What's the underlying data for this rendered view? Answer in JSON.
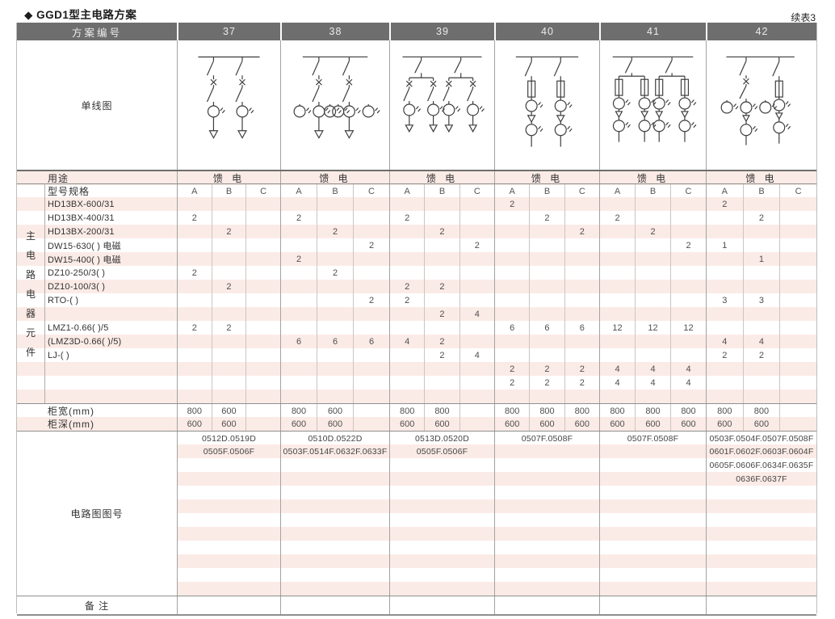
{
  "title": "◆ GGD1型主电路方案",
  "continued_label": "续表3",
  "colors": {
    "header_bg": "#6e6e6e",
    "stripe_pink": "#fbebe6"
  },
  "header": {
    "scheme_label": "方案编号",
    "schemes": [
      "37",
      "38",
      "39",
      "40",
      "41",
      "42"
    ]
  },
  "diagram": {
    "label": "单线图",
    "types": [
      "feeder2-ct",
      "feeder2-ct3",
      "feeder4-ct",
      "feeder2-fuse",
      "feeder4-fuse",
      "feeder2-mixed"
    ]
  },
  "usage": {
    "label": "用途",
    "values": [
      "馈 电",
      "馈 电",
      "馈 电",
      "馈 电",
      "馈 电",
      "馈 电"
    ]
  },
  "spec": {
    "label": "型号规格",
    "subcolumns": [
      "A",
      "B",
      "C"
    ],
    "left_vertical_label": "主电路电器元件"
  },
  "component_rows": [
    {
      "label": "HD13BX-600/31",
      "values": [
        "",
        "",
        "",
        "",
        "",
        "",
        "",
        "",
        "",
        "2",
        "",
        "",
        "",
        "",
        "",
        "2",
        "",
        ""
      ]
    },
    {
      "label": "HD13BX-400/31",
      "values": [
        "2",
        "",
        "",
        "2",
        "",
        "",
        "2",
        "",
        "",
        "",
        "2",
        "",
        "2",
        "",
        "",
        "",
        "2",
        ""
      ]
    },
    {
      "label": "HD13BX-200/31",
      "values": [
        "",
        "2",
        "",
        "",
        "2",
        "",
        "",
        "2",
        "",
        "",
        "",
        "2",
        "",
        "2",
        "",
        "",
        "",
        ""
      ]
    },
    {
      "label": "DW15-630( )  电磁",
      "values": [
        "",
        "",
        "",
        "",
        "",
        "2",
        "",
        "",
        "2",
        "",
        "",
        "",
        "",
        "",
        "2",
        "1",
        "",
        ""
      ]
    },
    {
      "label": "DW15-400( )  电磁",
      "values": [
        "",
        "",
        "",
        "2",
        "",
        "",
        "",
        "",
        "",
        "",
        "",
        "",
        "",
        "",
        "",
        "",
        "1",
        ""
      ]
    },
    {
      "label": "DZ10-250/3( )",
      "values": [
        "2",
        "",
        "",
        "",
        "2",
        "",
        "",
        "",
        "",
        "",
        "",
        "",
        "",
        "",
        "",
        "",
        "",
        ""
      ]
    },
    {
      "label": "DZ10-100/3( )",
      "values": [
        "",
        "2",
        "",
        "",
        "",
        "",
        "2",
        "2",
        "",
        "",
        "",
        "",
        "",
        "",
        "",
        "",
        "",
        ""
      ]
    },
    {
      "label": "RTO-( )",
      "values": [
        "",
        "",
        "",
        "",
        "",
        "2",
        "2",
        "",
        "",
        "",
        "",
        "",
        "",
        "",
        "",
        "3",
        "3",
        ""
      ]
    },
    {
      "label": "",
      "values": [
        "",
        "",
        "",
        "",
        "",
        "",
        "",
        "2",
        "4",
        "",
        "",
        "",
        "",
        "",
        "",
        "",
        "",
        ""
      ]
    },
    {
      "label": "LMZ1-0.66( )/5",
      "values": [
        "2",
        "2",
        "",
        "",
        "",
        "",
        "",
        "",
        "",
        "6",
        "6",
        "6",
        "12",
        "12",
        "12",
        "",
        "",
        ""
      ]
    },
    {
      "label": "(LMZ3D-0.66( )/5)",
      "values": [
        "",
        "",
        "",
        "6",
        "6",
        "6",
        "4",
        "2",
        "",
        "",
        "",
        "",
        "",
        "",
        "",
        "4",
        "4",
        ""
      ]
    },
    {
      "label": "LJ-( )",
      "values": [
        "",
        "",
        "",
        "",
        "",
        "",
        "",
        "2",
        "4",
        "",
        "",
        "",
        "",
        "",
        "",
        "2",
        "2",
        ""
      ]
    },
    {
      "label": "",
      "values": [
        "",
        "",
        "",
        "",
        "",
        "",
        "",
        "",
        "",
        "2",
        "2",
        "2",
        "4",
        "4",
        "4",
        "",
        "",
        ""
      ]
    },
    {
      "label": "",
      "values": [
        "",
        "",
        "",
        "",
        "",
        "",
        "",
        "",
        "",
        "2",
        "2",
        "2",
        "4",
        "4",
        "4",
        "",
        "",
        ""
      ]
    },
    {
      "label": "",
      "values": [
        "",
        "",
        "",
        "",
        "",
        "",
        "",
        "",
        "",
        "",
        "",
        "",
        "",
        "",
        "",
        "",
        "",
        ""
      ]
    }
  ],
  "cabinet_rows": [
    {
      "label": "柜宽(mm)",
      "values": [
        "800",
        "600",
        "",
        "800",
        "600",
        "",
        "800",
        "800",
        "",
        "800",
        "800",
        "800",
        "800",
        "800",
        "800",
        "800",
        "800",
        ""
      ]
    },
    {
      "label": "柜深(mm)",
      "values": [
        "600",
        "600",
        "",
        "600",
        "600",
        "",
        "600",
        "600",
        "",
        "600",
        "600",
        "600",
        "600",
        "600",
        "600",
        "600",
        "600",
        ""
      ]
    }
  ],
  "circuit": {
    "label": "电路图图号",
    "blank_row_count": 12,
    "rows_per_scheme": [
      [
        "0512D.0519D",
        "0505F.0506F"
      ],
      [
        "0510D.0522D",
        "0503F.0514F.0632F.0633F"
      ],
      [
        "0513D.0520D",
        "0505F.0506F"
      ],
      [
        "0507F.0508F"
      ],
      [
        "0507F.0508F"
      ],
      [
        "0503F.0504F.0507F.0508F",
        "0601F.0602F.0603F.0604F",
        "0605F.0606F.0634F.0635F",
        "0636F.0637F"
      ]
    ]
  },
  "remark": {
    "label": "备 注"
  }
}
